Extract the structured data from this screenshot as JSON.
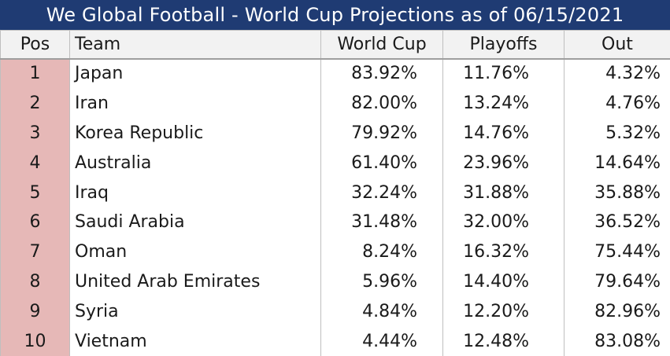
{
  "title": "We Global Football - World Cup Projections as of 06/15/2021",
  "headers": {
    "pos": "Pos",
    "team": "Team",
    "world_cup": "World Cup",
    "playoffs": "Playoffs",
    "out": "Out"
  },
  "rows": [
    {
      "pos": "1",
      "team": "Japan",
      "world_cup": "83.92%",
      "playoffs": "11.76%",
      "out": "4.32%"
    },
    {
      "pos": "2",
      "team": "Iran",
      "world_cup": "82.00%",
      "playoffs": "13.24%",
      "out": "4.76%"
    },
    {
      "pos": "3",
      "team": "Korea Republic",
      "world_cup": "79.92%",
      "playoffs": "14.76%",
      "out": "5.32%"
    },
    {
      "pos": "4",
      "team": "Australia",
      "world_cup": "61.40%",
      "playoffs": "23.96%",
      "out": "14.64%"
    },
    {
      "pos": "5",
      "team": "Iraq",
      "world_cup": "32.24%",
      "playoffs": "31.88%",
      "out": "35.88%"
    },
    {
      "pos": "6",
      "team": "Saudi Arabia",
      "world_cup": "31.48%",
      "playoffs": "32.00%",
      "out": "36.52%"
    },
    {
      "pos": "7",
      "team": "Oman",
      "world_cup": "8.24%",
      "playoffs": "16.32%",
      "out": "75.44%"
    },
    {
      "pos": "8",
      "team": "United Arab Emirates",
      "world_cup": "5.96%",
      "playoffs": "14.40%",
      "out": "79.64%"
    },
    {
      "pos": "9",
      "team": "Syria",
      "world_cup": "4.84%",
      "playoffs": "12.20%",
      "out": "82.96%"
    },
    {
      "pos": "10",
      "team": "Vietnam",
      "world_cup": "4.44%",
      "playoffs": "12.48%",
      "out": "83.08%"
    }
  ],
  "colors": {
    "title_background": "#1f3b73",
    "title_text": "#ffffff",
    "pos_column": "#e6b8b7",
    "header_background": "#f2f2f2"
  }
}
